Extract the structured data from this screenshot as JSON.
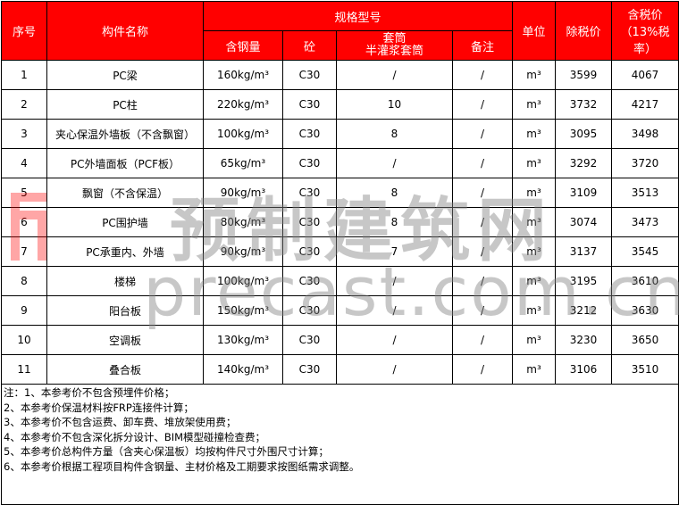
{
  "header": {
    "index": "序号",
    "name": "构件名称",
    "spec": "规格型号",
    "steel": "含钢量",
    "concrete": "砼",
    "sleeve_line1": "套筒",
    "sleeve_line2": "半灌浆套筒",
    "remark": "备注",
    "unit": "单位",
    "price_ex_tax": "除税价",
    "price_inc_tax": "含税价（13%税率）"
  },
  "rows": [
    {
      "no": "1",
      "name": "PC梁",
      "steel": "160kg/m³",
      "concrete": "C30",
      "sleeve": "/",
      "remark": "/",
      "unit": "m³",
      "ex": "3599",
      "inc": "4067"
    },
    {
      "no": "2",
      "name": "PC柱",
      "steel": "220kg/m³",
      "concrete": "C30",
      "sleeve": "10",
      "remark": "/",
      "unit": "m³",
      "ex": "3732",
      "inc": "4217"
    },
    {
      "no": "3",
      "name": "夹心保温外墙板（不含飘窗）",
      "steel": "100kg/m³",
      "concrete": "C30",
      "sleeve": "8",
      "remark": "/",
      "unit": "m³",
      "ex": "3095",
      "inc": "3498"
    },
    {
      "no": "4",
      "name": "PC外墙面板（PCF板）",
      "steel": "65kg/m³",
      "concrete": "C30",
      "sleeve": "/",
      "remark": "/",
      "unit": "m³",
      "ex": "3292",
      "inc": "3720"
    },
    {
      "no": "5",
      "name": "飘窗（不含保温）",
      "steel": "90kg/m³",
      "concrete": "C30",
      "sleeve": "8",
      "remark": "/",
      "unit": "m³",
      "ex": "3109",
      "inc": "3513"
    },
    {
      "no": "6",
      "name": "PC围护墙",
      "steel": "80kg/m³",
      "concrete": "C30",
      "sleeve": "8",
      "remark": "/",
      "unit": "m³",
      "ex": "3074",
      "inc": "3473"
    },
    {
      "no": "7",
      "name": "PC承重内、外墙",
      "steel": "90kg/m³",
      "concrete": "C30",
      "sleeve": "7",
      "remark": "/",
      "unit": "m³",
      "ex": "3137",
      "inc": "3545"
    },
    {
      "no": "8",
      "name": "楼梯",
      "steel": "100kg/m³",
      "concrete": "C30",
      "sleeve": "/",
      "remark": "/",
      "unit": "m³",
      "ex": "3195",
      "inc": "3610"
    },
    {
      "no": "9",
      "name": "阳台板",
      "steel": "150kg/m³",
      "concrete": "C30",
      "sleeve": "/",
      "remark": "/",
      "unit": "m³",
      "ex": "3212",
      "inc": "3630"
    },
    {
      "no": "10",
      "name": "空调板",
      "steel": "130kg/m³",
      "concrete": "C30",
      "sleeve": "/",
      "remark": "/",
      "unit": "m³",
      "ex": "3230",
      "inc": "3650"
    },
    {
      "no": "11",
      "name": "叠合板",
      "steel": "140kg/m³",
      "concrete": "C30",
      "sleeve": "/",
      "remark": "/",
      "unit": "m³",
      "ex": "3106",
      "inc": "3510"
    }
  ],
  "notes": [
    "注：1、本参考价不包含预埋件价格；",
    "2、本参考价保温材料按FRP连接件计算；",
    "3、本参考价不包含运费、卸车费、堆放架使用费；",
    "4、本参考价不包含深化拆分设计、BIM模型碰撞检查费；",
    "5、本参考价总构件方量（含夹心保温板）均按构件尺寸外围尺寸计算；",
    "6、本参考价根据工程项目构件含钢量、主材价格及工期要求按图纸需求调整。"
  ],
  "watermark": {
    "cn": "预制建筑网",
    "en": "precast.com.cn"
  },
  "colors": {
    "header_bg": "#ff0000",
    "header_text": "#ffffff"
  }
}
